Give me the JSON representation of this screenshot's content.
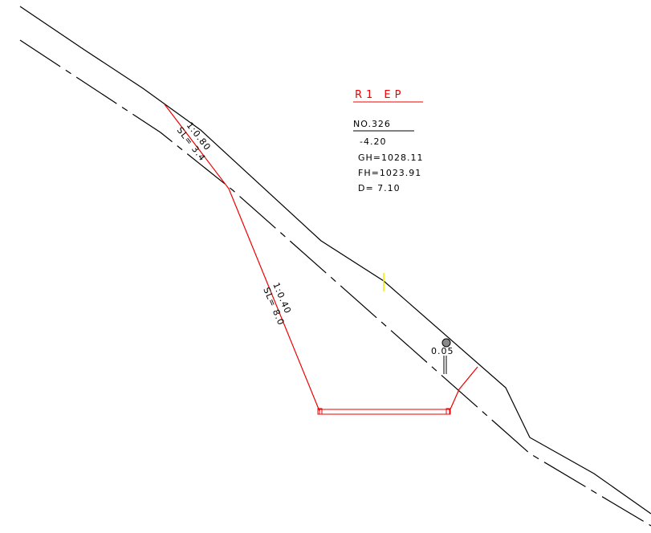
{
  "title": "R1 EP",
  "station": {
    "number": "NO.326",
    "offset": "-4.20",
    "ground_height": "GH=1028.11",
    "formation_height": "FH=1023.91",
    "distance": "D= 7.10"
  },
  "slopes": [
    {
      "ratio": "1:0.80",
      "length": "SL= 3.4"
    },
    {
      "ratio": "1:0.40",
      "length": "SL= 8.0"
    }
  ],
  "marker": {
    "label": "0.05"
  }
}
